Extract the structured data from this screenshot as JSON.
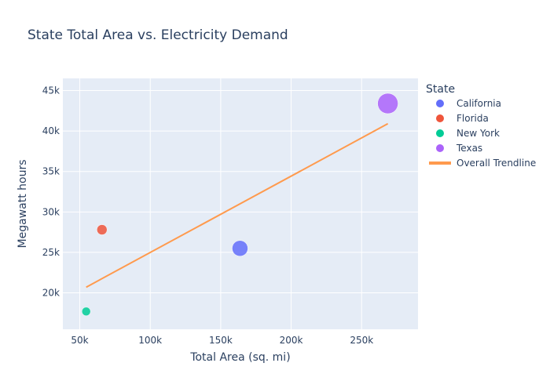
{
  "chart_data": {
    "type": "scatter",
    "title": "State Total Area vs. Electricity Demand",
    "xlabel": "Total Area (sq. mi)",
    "ylabel": "Megawatt hours",
    "xlim": [
      38000,
      290000
    ],
    "ylim": [
      15500,
      46500
    ],
    "x_ticks": [
      50000,
      100000,
      150000,
      200000,
      250000
    ],
    "x_tick_labels": [
      "50k",
      "100k",
      "150k",
      "200k",
      "250k"
    ],
    "y_ticks": [
      20000,
      25000,
      30000,
      35000,
      40000,
      45000
    ],
    "y_tick_labels": [
      "20k",
      "25k",
      "30k",
      "35k",
      "40k",
      "45k"
    ],
    "grid": true,
    "legend_title": "State",
    "legend_position": "right",
    "series": [
      {
        "name": "California",
        "color": "#636efa",
        "x": 163695,
        "y": 25500,
        "size": "large"
      },
      {
        "name": "Florida",
        "color": "#ef553b",
        "x": 65758,
        "y": 27800,
        "size": "medium"
      },
      {
        "name": "New York",
        "color": "#00cc96",
        "x": 54555,
        "y": 17700,
        "size": "small"
      },
      {
        "name": "Texas",
        "color": "#ab63fa",
        "x": 268596,
        "y": 43400,
        "size": "largest"
      }
    ],
    "trendline": {
      "name": "Overall Trendline",
      "color": "#ff9a4d",
      "x": [
        54555,
        268596
      ],
      "y": [
        20700,
        40900
      ]
    }
  }
}
